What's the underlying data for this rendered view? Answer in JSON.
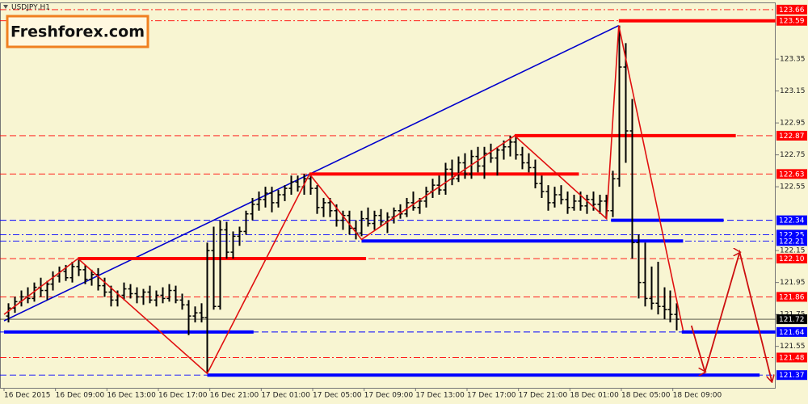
{
  "chart_data": {
    "type": "ohlc",
    "title": "USDJPY,H1",
    "logo": "Freshforex.com",
    "bar_color": "#000000",
    "xlim": [
      -0.6,
      119.4
    ],
    "ylim": [
      121.29,
      123.7
    ],
    "yticks": [
      123.35,
      123.15,
      122.95,
      122.75,
      122.55,
      122.15,
      121.95,
      121.75,
      121.55
    ],
    "xticks": [
      {
        "value": -0.6,
        "label": "16 Dec 2015"
      },
      {
        "value": 7.4,
        "label": "16 Dec 09:00"
      },
      {
        "value": 15.4,
        "label": "16 Dec 13:00"
      },
      {
        "value": 23.4,
        "label": "16 Dec 17:00"
      },
      {
        "value": 31.4,
        "label": "16 Dec 21:00"
      },
      {
        "value": 39.4,
        "label": "17 Dec 01:00"
      },
      {
        "value": 47.4,
        "label": "17 Dec 05:00"
      },
      {
        "value": 55.4,
        "label": "17 Dec 09:00"
      },
      {
        "value": 63.4,
        "label": "17 Dec 13:00"
      },
      {
        "value": 71.4,
        "label": "17 Dec 17:00"
      },
      {
        "value": 79.4,
        "label": "17 Dec 21:00"
      },
      {
        "value": 87.4,
        "label": "18 Dec 01:00"
      },
      {
        "value": 95.4,
        "label": "18 Dec 05:00"
      },
      {
        "value": 103.4,
        "label": "18 Dec 09:00"
      }
    ],
    "bars": [
      [
        121.74,
        121.82,
        121.7,
        121.79
      ],
      [
        121.79,
        121.86,
        121.76,
        121.83
      ],
      [
        121.83,
        121.9,
        121.8,
        121.86
      ],
      [
        121.86,
        121.92,
        121.82,
        121.85
      ],
      [
        121.85,
        121.95,
        121.83,
        121.92
      ],
      [
        121.92,
        121.98,
        121.86,
        121.9
      ],
      [
        121.9,
        121.96,
        121.84,
        121.94
      ],
      [
        121.94,
        122.02,
        121.9,
        121.99
      ],
      [
        121.99,
        122.05,
        121.95,
        122.02
      ],
      [
        122.02,
        122.06,
        121.96,
        121.98
      ],
      [
        121.98,
        122.08,
        121.95,
        122.05
      ],
      [
        122.05,
        122.1,
        121.99,
        122.03
      ],
      [
        122.03,
        122.06,
        121.94,
        121.97
      ],
      [
        121.97,
        122.03,
        121.93,
        122.0
      ],
      [
        122.0,
        122.04,
        121.9,
        121.93
      ],
      [
        121.93,
        121.98,
        121.86,
        121.89
      ],
      [
        121.89,
        121.93,
        121.8,
        121.84
      ],
      [
        121.84,
        121.9,
        121.8,
        121.87
      ],
      [
        121.87,
        121.95,
        121.84,
        121.91
      ],
      [
        121.91,
        121.94,
        121.85,
        121.88
      ],
      [
        121.88,
        121.92,
        121.82,
        121.86
      ],
      [
        121.86,
        121.91,
        121.81,
        121.89
      ],
      [
        121.89,
        121.93,
        121.82,
        121.84
      ],
      [
        121.84,
        121.9,
        121.8,
        121.87
      ],
      [
        121.87,
        121.92,
        121.82,
        121.85
      ],
      [
        121.85,
        121.94,
        121.83,
        121.9
      ],
      [
        121.9,
        121.93,
        121.82,
        121.84
      ],
      [
        121.84,
        121.88,
        121.78,
        121.81
      ],
      [
        121.81,
        121.84,
        121.62,
        121.74
      ],
      [
        121.74,
        121.8,
        121.7,
        121.76
      ],
      [
        121.76,
        121.82,
        121.7,
        121.73
      ],
      [
        121.73,
        122.2,
        121.38,
        122.15
      ],
      [
        122.15,
        122.3,
        121.78,
        121.8
      ],
      [
        121.8,
        122.34,
        121.78,
        122.28
      ],
      [
        122.28,
        122.33,
        122.1,
        122.14
      ],
      [
        122.14,
        122.27,
        122.1,
        122.24
      ],
      [
        122.24,
        122.3,
        122.18,
        122.27
      ],
      [
        122.27,
        122.4,
        122.25,
        122.38
      ],
      [
        122.38,
        122.48,
        122.34,
        122.44
      ],
      [
        122.44,
        122.52,
        122.4,
        122.47
      ],
      [
        122.47,
        122.55,
        122.42,
        122.51
      ],
      [
        122.51,
        122.55,
        122.39,
        122.45
      ],
      [
        122.45,
        122.53,
        122.42,
        122.5
      ],
      [
        122.5,
        122.56,
        122.46,
        122.54
      ],
      [
        122.54,
        122.62,
        122.5,
        122.58
      ],
      [
        122.58,
        122.62,
        122.52,
        122.55
      ],
      [
        122.55,
        122.63,
        122.5,
        122.6
      ],
      [
        122.6,
        122.62,
        122.5,
        122.54
      ],
      [
        122.54,
        122.56,
        122.38,
        122.42
      ],
      [
        122.42,
        122.48,
        122.36,
        122.45
      ],
      [
        122.45,
        122.48,
        122.36,
        122.4
      ],
      [
        122.4,
        122.44,
        122.3,
        122.34
      ],
      [
        122.34,
        122.4,
        122.28,
        122.37
      ],
      [
        122.37,
        122.4,
        122.25,
        122.29
      ],
      [
        122.29,
        122.34,
        122.22,
        122.26
      ],
      [
        122.26,
        122.4,
        122.24,
        122.35
      ],
      [
        122.35,
        122.42,
        122.3,
        122.32
      ],
      [
        122.32,
        122.4,
        122.28,
        122.37
      ],
      [
        122.37,
        122.41,
        122.3,
        122.33
      ],
      [
        122.33,
        122.39,
        122.26,
        122.36
      ],
      [
        122.36,
        122.42,
        122.32,
        122.4
      ],
      [
        122.4,
        122.44,
        122.35,
        122.38
      ],
      [
        122.38,
        122.48,
        122.36,
        122.45
      ],
      [
        122.45,
        122.52,
        122.4,
        122.42
      ],
      [
        122.42,
        122.48,
        122.38,
        122.46
      ],
      [
        122.46,
        122.55,
        122.42,
        122.52
      ],
      [
        122.52,
        122.6,
        122.48,
        122.56
      ],
      [
        122.56,
        122.62,
        122.5,
        122.53
      ],
      [
        122.53,
        122.7,
        122.5,
        122.66
      ],
      [
        122.66,
        122.72,
        122.56,
        122.6
      ],
      [
        122.6,
        122.74,
        122.58,
        122.7
      ],
      [
        122.7,
        122.76,
        122.6,
        122.63
      ],
      [
        122.63,
        122.78,
        122.6,
        122.74
      ],
      [
        122.74,
        122.8,
        122.64,
        122.68
      ],
      [
        122.68,
        122.8,
        122.6,
        122.76
      ],
      [
        122.76,
        122.82,
        122.7,
        122.73
      ],
      [
        122.73,
        122.8,
        122.62,
        122.78
      ],
      [
        122.78,
        122.84,
        122.72,
        122.8
      ],
      [
        122.8,
        122.87,
        122.74,
        122.83
      ],
      [
        122.83,
        122.86,
        122.72,
        122.75
      ],
      [
        122.75,
        122.8,
        122.66,
        122.7
      ],
      [
        122.7,
        122.76,
        122.64,
        122.67
      ],
      [
        122.67,
        122.72,
        122.54,
        122.57
      ],
      [
        122.57,
        122.62,
        122.48,
        122.52
      ],
      [
        122.52,
        122.56,
        122.4,
        122.45
      ],
      [
        122.45,
        122.55,
        122.42,
        122.5
      ],
      [
        122.5,
        122.56,
        122.44,
        122.47
      ],
      [
        122.47,
        122.52,
        122.38,
        122.42
      ],
      [
        122.42,
        122.5,
        122.4,
        122.46
      ],
      [
        122.46,
        122.52,
        122.4,
        122.43
      ],
      [
        122.43,
        122.5,
        122.38,
        122.47
      ],
      [
        122.47,
        122.52,
        122.4,
        122.44
      ],
      [
        122.44,
        122.5,
        122.38,
        122.46
      ],
      [
        122.46,
        122.5,
        122.35,
        122.4
      ],
      [
        122.4,
        122.65,
        122.36,
        122.6
      ],
      [
        122.6,
        123.56,
        122.55,
        123.3
      ],
      [
        123.3,
        123.45,
        122.7,
        122.9
      ],
      [
        122.9,
        123.1,
        122.1,
        122.2
      ],
      [
        122.2,
        122.25,
        121.85,
        121.95
      ],
      [
        121.95,
        122.2,
        121.8,
        121.85
      ],
      [
        121.85,
        122.05,
        121.78,
        121.82
      ],
      [
        121.82,
        122.08,
        121.75,
        121.8
      ],
      [
        121.8,
        121.92,
        121.72,
        121.78
      ],
      [
        121.78,
        121.9,
        121.7,
        121.75
      ],
      [
        121.75,
        121.82,
        121.65,
        121.72
      ]
    ],
    "levels": [
      {
        "value": 123.66,
        "color": "#ff0000",
        "style": "dashdot"
      },
      {
        "value": 123.59,
        "color": "#ff0000",
        "style": "dashdot"
      },
      {
        "value": 122.87,
        "color": "#ff0000",
        "style": "dash"
      },
      {
        "value": 122.63,
        "color": "#ff0000",
        "style": "dash"
      },
      {
        "value": 122.34,
        "color": "#0000ff",
        "style": "dash"
      },
      {
        "value": 122.25,
        "color": "#0000ff",
        "style": "dashdot"
      },
      {
        "value": 122.21,
        "color": "#0000ff",
        "style": "dashdot"
      },
      {
        "value": 122.1,
        "label": "122.10",
        "color": "#ff0000",
        "style": "dash"
      },
      {
        "value": 121.86,
        "color": "#ff0000",
        "style": "dash"
      },
      {
        "value": 121.72,
        "color": "#000000",
        "style": "solid"
      },
      {
        "value": 121.64,
        "color": "#0000ff",
        "style": "dash"
      },
      {
        "value": 121.48,
        "color": "#ff0000",
        "style": "dashdot"
      },
      {
        "value": 121.37,
        "color": "#0000ff",
        "style": "dash"
      }
    ],
    "segments": [
      {
        "x": [
          95,
          119.4
        ],
        "y": 123.59,
        "color": "#ff0000"
      },
      {
        "x": [
          78.8,
          113.2
        ],
        "y": 122.87,
        "color": "#ff0000"
      },
      {
        "x": [
          46.9,
          88.8
        ],
        "y": 122.63,
        "color": "#ff0000"
      },
      {
        "x": [
          10.9,
          55.7
        ],
        "y": 122.1,
        "color": "#ff0000"
      },
      {
        "x": [
          93.8,
          111.3
        ],
        "y": 122.34,
        "color": "#0000ff"
      },
      {
        "x": [
          55,
          105
        ],
        "y": 122.21,
        "color": "#0000ff"
      },
      {
        "x": [
          -0.6,
          38.2
        ],
        "y": 121.64,
        "color": "#0000ff"
      },
      {
        "x": [
          104.8,
          119.4
        ],
        "y": 121.64,
        "color": "#0000ff"
      },
      {
        "x": [
          31,
          116.9
        ],
        "y": 121.37,
        "color": "#0000ff"
      }
    ],
    "zigzag": {
      "color": "#e01010",
      "x": [
        -0.6,
        10.9,
        31,
        46.9,
        55,
        78.8,
        93.1,
        95,
        105
      ],
      "y": [
        121.75,
        122.1,
        121.38,
        122.63,
        122.22,
        122.87,
        122.35,
        123.56,
        121.65
      ]
    },
    "trendline": {
      "color": "#0000cc",
      "x": [
        -0.6,
        95
      ],
      "y": [
        121.71,
        123.56
      ]
    },
    "projection": {
      "color": "#cc1010",
      "x": [
        106.3,
        108.4,
        113.8,
        118.8
      ],
      "y": [
        121.68,
        121.39,
        122.14,
        121.33
      ]
    }
  }
}
